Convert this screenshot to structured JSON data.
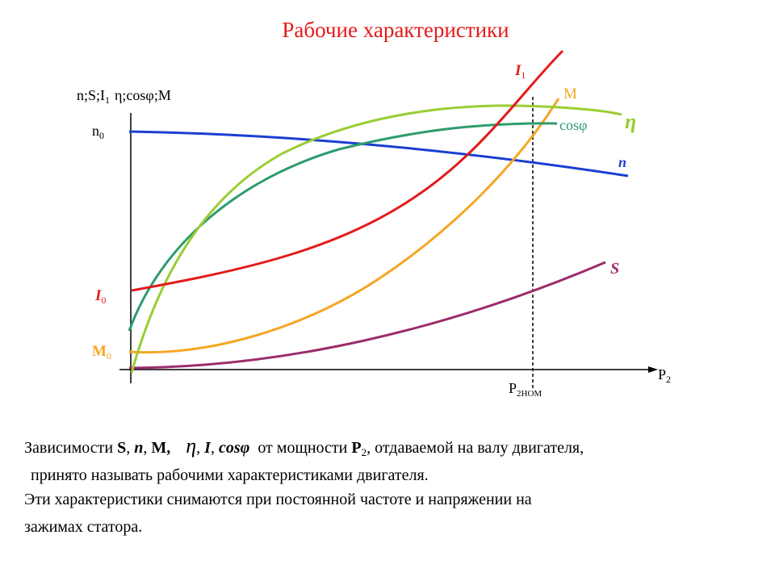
{
  "title": "Рабочие характеристики",
  "labels": {
    "y_axis": [
      "n;S;I",
      "1",
      "η;cosφ;M"
    ],
    "x_axis": [
      "P",
      "2"
    ],
    "n0": [
      "n",
      "0"
    ],
    "I0": [
      "I",
      "0"
    ],
    "M0": [
      "M",
      "0"
    ],
    "p2nom": [
      "P",
      "2НОМ"
    ],
    "I1": [
      "I",
      "1"
    ],
    "M": "M",
    "cos": "cosφ",
    "eta": "η",
    "n": "n",
    "S": "S"
  },
  "description": {
    "line1": [
      "Зависимости ",
      "S",
      ", ",
      "n",
      ", ",
      "M,",
      "η",
      ", ",
      "I",
      ", ",
      "cosφ",
      "от мощности ",
      "P",
      "2",
      ", отдаваемой на валу двигателя,"
    ],
    "line2": "принято называть рабочими характеристиками двигателя.",
    "line3": "Эти характеристики снимаются при постоянной частоте и напряжении на",
    "line4": "зажимах статора."
  }
}
